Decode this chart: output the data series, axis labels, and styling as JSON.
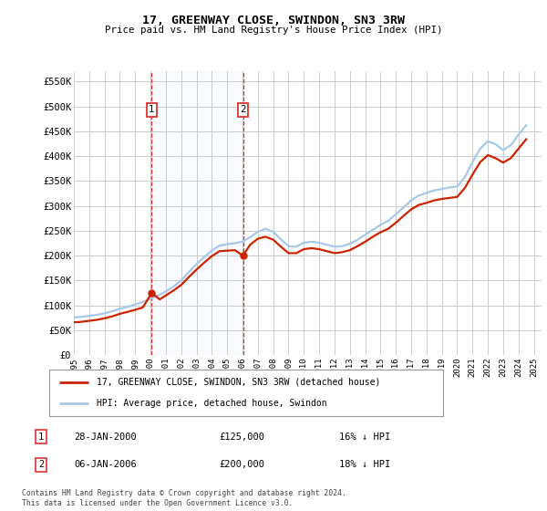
{
  "title": "17, GREENWAY CLOSE, SWINDON, SN3 3RW",
  "subtitle": "Price paid vs. HM Land Registry's House Price Index (HPI)",
  "ylim": [
    0,
    570000
  ],
  "yticks": [
    0,
    50000,
    100000,
    150000,
    200000,
    250000,
    300000,
    350000,
    400000,
    450000,
    500000,
    550000
  ],
  "ytick_labels": [
    "£0",
    "£50K",
    "£100K",
    "£150K",
    "£200K",
    "£250K",
    "£300K",
    "£350K",
    "£400K",
    "£450K",
    "£500K",
    "£550K"
  ],
  "hpi_color": "#a8c8e8",
  "price_color": "#cc2200",
  "vline_color": "#dd3333",
  "marker1_year": 2000.08,
  "marker2_year": 2006.03,
  "marker1_price": 125000,
  "marker2_price": 200000,
  "legend_house_label": "17, GREENWAY CLOSE, SWINDON, SN3 3RW (detached house)",
  "legend_hpi_label": "HPI: Average price, detached house, Swindon",
  "table_row1": [
    "1",
    "28-JAN-2000",
    "£125,000",
    "16% ↓ HPI"
  ],
  "table_row2": [
    "2",
    "06-JAN-2006",
    "£200,000",
    "18% ↓ HPI"
  ],
  "footnote": "Contains HM Land Registry data © Crown copyright and database right 2024.\nThis data is licensed under the Open Government Licence v3.0.",
  "background_color": "#ffffff",
  "plot_bg_color": "#ffffff",
  "grid_color": "#cccccc",
  "hpi_data_x": [
    1995.0,
    1995.5,
    1996.0,
    1996.5,
    1997.0,
    1997.5,
    1998.0,
    1998.5,
    1999.0,
    1999.5,
    2000.0,
    2000.5,
    2001.0,
    2001.5,
    2002.0,
    2002.5,
    2003.0,
    2003.5,
    2004.0,
    2004.5,
    2005.0,
    2005.5,
    2006.0,
    2006.5,
    2007.0,
    2007.5,
    2008.0,
    2008.5,
    2009.0,
    2009.5,
    2010.0,
    2010.5,
    2011.0,
    2011.5,
    2012.0,
    2012.5,
    2013.0,
    2013.5,
    2014.0,
    2014.5,
    2015.0,
    2015.5,
    2016.0,
    2016.5,
    2017.0,
    2017.5,
    2018.0,
    2018.5,
    2019.0,
    2019.5,
    2020.0,
    2020.5,
    2021.0,
    2021.5,
    2022.0,
    2022.5,
    2023.0,
    2023.5,
    2024.0,
    2024.5
  ],
  "hpi_data_y": [
    76000,
    77000,
    79000,
    81000,
    84000,
    88000,
    93000,
    97000,
    102000,
    107000,
    113000,
    120000,
    128000,
    138000,
    150000,
    167000,
    183000,
    197000,
    210000,
    220000,
    223000,
    225000,
    228000,
    237000,
    248000,
    254000,
    248000,
    233000,
    219000,
    218000,
    226000,
    228000,
    226000,
    222000,
    218000,
    219000,
    224000,
    232000,
    242000,
    252000,
    262000,
    270000,
    283000,
    297000,
    311000,
    321000,
    326000,
    331000,
    334000,
    337000,
    339000,
    358000,
    388000,
    415000,
    430000,
    424000,
    412000,
    422000,
    443000,
    462000
  ],
  "price_data_x": [
    1995.0,
    1995.5,
    1996.0,
    1996.5,
    1997.0,
    1997.5,
    1998.0,
    1998.5,
    1999.0,
    1999.5,
    2000.08,
    2000.6,
    2001.0,
    2001.5,
    2002.0,
    2002.5,
    2003.0,
    2003.5,
    2004.0,
    2004.5,
    2005.0,
    2005.5,
    2006.03,
    2006.5,
    2007.0,
    2007.5,
    2008.0,
    2008.5,
    2009.0,
    2009.5,
    2010.0,
    2010.5,
    2011.0,
    2011.5,
    2012.0,
    2012.5,
    2013.0,
    2013.5,
    2014.0,
    2014.5,
    2015.0,
    2015.5,
    2016.0,
    2016.5,
    2017.0,
    2017.5,
    2018.0,
    2018.5,
    2019.0,
    2019.5,
    2020.0,
    2020.5,
    2021.0,
    2021.5,
    2022.0,
    2022.5,
    2023.0,
    2023.5,
    2024.0,
    2024.5
  ],
  "price_data_y": [
    66000,
    67000,
    69000,
    71000,
    74000,
    78000,
    83000,
    87000,
    91000,
    96000,
    125000,
    112000,
    120000,
    130000,
    141000,
    157000,
    172000,
    186000,
    199000,
    209000,
    210000,
    211000,
    200000,
    222000,
    234000,
    238000,
    232000,
    218000,
    205000,
    205000,
    213000,
    215000,
    213000,
    209000,
    205000,
    207000,
    211000,
    219000,
    228000,
    238000,
    247000,
    254000,
    266000,
    280000,
    293000,
    302000,
    306000,
    311000,
    314000,
    316000,
    318000,
    336000,
    363000,
    388000,
    402000,
    396000,
    387000,
    396000,
    415000,
    434000
  ],
  "xmin": 1995,
  "xmax": 2025.5
}
